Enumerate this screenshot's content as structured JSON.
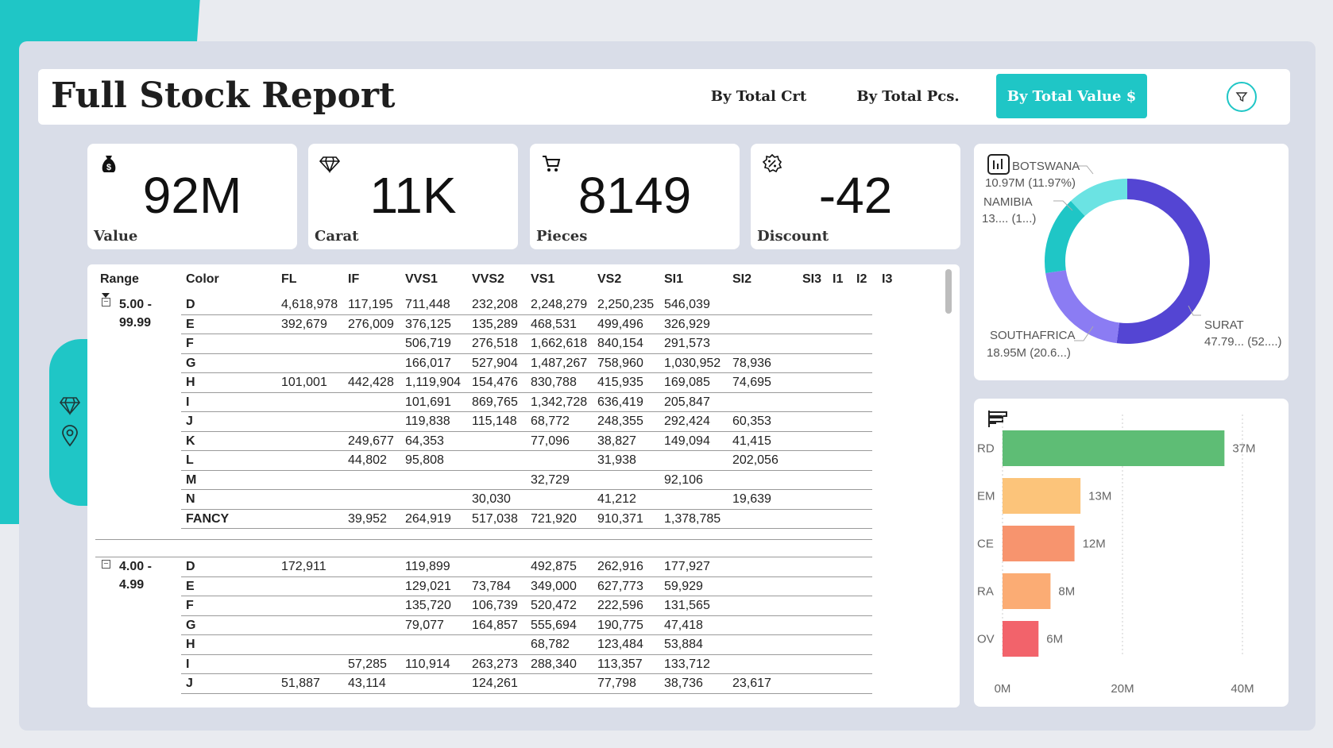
{
  "header": {
    "title": "Full Stock Report",
    "nav": [
      {
        "label": "By Total Crt",
        "active": false
      },
      {
        "label": "By Total Pcs.",
        "active": false
      },
      {
        "label": "By Total Value $",
        "active": true
      }
    ]
  },
  "kpis": [
    {
      "icon": "money-bag-icon",
      "value": "92M",
      "label": "Value"
    },
    {
      "icon": "diamond-icon",
      "value": "11K",
      "label": "Carat"
    },
    {
      "icon": "cart-icon",
      "value": "8149",
      "label": "Pieces"
    },
    {
      "icon": "discount-badge-icon",
      "value": "-42",
      "label": "Discount"
    }
  ],
  "table": {
    "columns": [
      "Range",
      "Color",
      "FL",
      "IF",
      "VVS1",
      "VVS2",
      "VS1",
      "VS2",
      "SI1",
      "SI2",
      "SI3",
      "I1",
      "I2",
      "I3"
    ],
    "groups": [
      {
        "range": "5.00 -\n99.99",
        "rows": [
          {
            "color": "D",
            "FL": "4,618,978",
            "IF": "117,195",
            "VVS1": "711,448",
            "VVS2": "232,208",
            "VS1": "2,248,279",
            "VS2": "2,250,235",
            "SI1": "546,039",
            "SI2": ""
          },
          {
            "color": "E",
            "FL": "392,679",
            "IF": "276,009",
            "VVS1": "376,125",
            "VVS2": "135,289",
            "VS1": "468,531",
            "VS2": "499,496",
            "SI1": "326,929",
            "SI2": ""
          },
          {
            "color": "F",
            "FL": "",
            "IF": "",
            "VVS1": "506,719",
            "VVS2": "276,518",
            "VS1": "1,662,618",
            "VS2": "840,154",
            "SI1": "291,573",
            "SI2": ""
          },
          {
            "color": "G",
            "FL": "",
            "IF": "",
            "VVS1": "166,017",
            "VVS2": "527,904",
            "VS1": "1,487,267",
            "VS2": "758,960",
            "SI1": "1,030,952",
            "SI2": "78,936"
          },
          {
            "color": "H",
            "FL": "101,001",
            "IF": "442,428",
            "VVS1": "1,119,904",
            "VVS2": "154,476",
            "VS1": "830,788",
            "VS2": "415,935",
            "SI1": "169,085",
            "SI2": "74,695"
          },
          {
            "color": "I",
            "FL": "",
            "IF": "",
            "VVS1": "101,691",
            "VVS2": "869,765",
            "VS1": "1,342,728",
            "VS2": "636,419",
            "SI1": "205,847",
            "SI2": ""
          },
          {
            "color": "J",
            "FL": "",
            "IF": "",
            "VVS1": "119,838",
            "VVS2": "115,148",
            "VS1": "68,772",
            "VS2": "248,355",
            "SI1": "292,424",
            "SI2": "60,353"
          },
          {
            "color": "K",
            "FL": "",
            "IF": "249,677",
            "VVS1": "64,353",
            "VVS2": "",
            "VS1": "77,096",
            "VS2": "38,827",
            "SI1": "149,094",
            "SI2": "41,415"
          },
          {
            "color": "L",
            "FL": "",
            "IF": "44,802",
            "VVS1": "95,808",
            "VVS2": "",
            "VS1": "",
            "VS2": "31,938",
            "SI1": "",
            "SI2": "202,056"
          },
          {
            "color": "M",
            "FL": "",
            "IF": "",
            "VVS1": "",
            "VVS2": "",
            "VS1": "32,729",
            "VS2": "",
            "SI1": "92,106",
            "SI2": ""
          },
          {
            "color": "N",
            "FL": "",
            "IF": "",
            "VVS1": "",
            "VVS2": "30,030",
            "VS1": "",
            "VS2": "41,212",
            "SI1": "",
            "SI2": "19,639"
          },
          {
            "color": "FANCY",
            "FL": "",
            "IF": "39,952",
            "VVS1": "264,919",
            "VVS2": "517,038",
            "VS1": "721,920",
            "VS2": "910,371",
            "SI1": "1,378,785",
            "SI2": ""
          }
        ]
      },
      {
        "range": "4.00 -\n4.99",
        "rows": [
          {
            "color": "D",
            "FL": "172,911",
            "IF": "",
            "VVS1": "119,899",
            "VVS2": "",
            "VS1": "492,875",
            "VS2": "262,916",
            "SI1": "177,927",
            "SI2": ""
          },
          {
            "color": "E",
            "FL": "",
            "IF": "",
            "VVS1": "129,021",
            "VVS2": "73,784",
            "VS1": "349,000",
            "VS2": "627,773",
            "SI1": "59,929",
            "SI2": ""
          },
          {
            "color": "F",
            "FL": "",
            "IF": "",
            "VVS1": "135,720",
            "VVS2": "106,739",
            "VS1": "520,472",
            "VS2": "222,596",
            "SI1": "131,565",
            "SI2": ""
          },
          {
            "color": "G",
            "FL": "",
            "IF": "",
            "VVS1": "79,077",
            "VVS2": "164,857",
            "VS1": "555,694",
            "VS2": "190,775",
            "SI1": "47,418",
            "SI2": ""
          },
          {
            "color": "H",
            "FL": "",
            "IF": "",
            "VVS1": "",
            "VVS2": "",
            "VS1": "68,782",
            "VS2": "123,484",
            "SI1": "53,884",
            "SI2": ""
          },
          {
            "color": "I",
            "FL": "",
            "IF": "57,285",
            "VVS1": "110,914",
            "VVS2": "263,273",
            "VS1": "288,340",
            "VS2": "113,357",
            "SI1": "133,712",
            "SI2": ""
          },
          {
            "color": "J",
            "FL": "51,887",
            "IF": "43,114",
            "VVS1": "",
            "VVS2": "124,261",
            "VS1": "",
            "VS2": "77,798",
            "SI1": "38,736",
            "SI2": "23,617"
          }
        ]
      }
    ]
  },
  "donut": {
    "slices": [
      {
        "name": "SURAT",
        "value_label": "47.79... (52....)",
        "percent": 52.05,
        "color": "#5445d3"
      },
      {
        "name": "SOUTHAFRICA",
        "value_label": "18.95M (20.6...)",
        "percent": 20.64,
        "color": "#8b7cf3"
      },
      {
        "name": "NAMIBIA",
        "value_label": "13.... (1...)",
        "percent": 15.34,
        "color": "#1fc6c6"
      },
      {
        "name": "BOTSWANA",
        "value_label": "10.97M (11.97%)",
        "percent": 11.97,
        "color": "#6be3e3"
      }
    ]
  },
  "chart_data": {
    "type": "bar",
    "orientation": "horizontal",
    "categories": [
      "RD",
      "EM",
      "CE",
      "RA",
      "OV"
    ],
    "values": [
      37,
      13,
      12,
      8,
      6
    ],
    "value_labels": [
      "37M",
      "13M",
      "12M",
      "8M",
      "6M"
    ],
    "colors": [
      "#5ebd75",
      "#fcc47a",
      "#f7946e",
      "#fbac74",
      "#f2636b"
    ],
    "x_ticks": [
      "0M",
      "20M",
      "40M"
    ],
    "xlim": [
      0,
      40
    ]
  }
}
